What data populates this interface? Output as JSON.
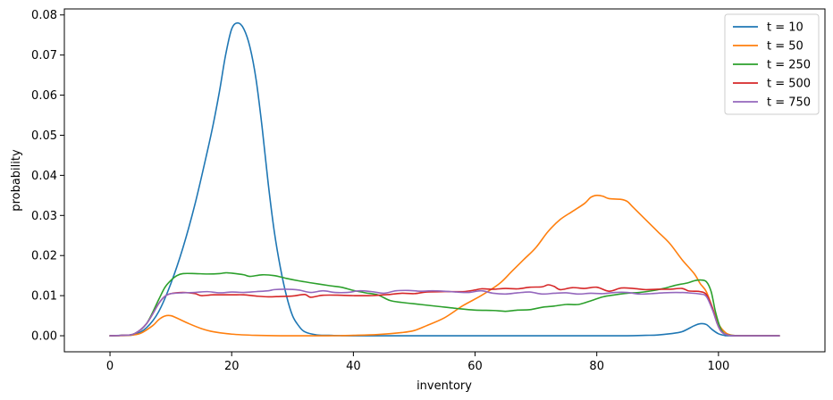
{
  "chart_data": {
    "type": "line",
    "xlabel": "inventory",
    "ylabel": "probability",
    "xlim": [
      -7.5,
      117.5
    ],
    "ylim": [
      -0.004,
      0.0815
    ],
    "xticks": [
      0,
      20,
      40,
      60,
      80,
      100
    ],
    "yticks": [
      0.0,
      0.01,
      0.02,
      0.03,
      0.04,
      0.05,
      0.06,
      0.07,
      0.08
    ],
    "ytick_labels": [
      "0.00",
      "0.01",
      "0.02",
      "0.03",
      "0.04",
      "0.05",
      "0.06",
      "0.07",
      "0.08"
    ],
    "grid": false,
    "legend_position": "top-right",
    "series": [
      {
        "name": "t = 10",
        "color": "#1f77b4",
        "points": [
          [
            0,
            0
          ],
          [
            2,
            0.0001
          ],
          [
            4,
            0.0003
          ],
          [
            6,
            0.002
          ],
          [
            8,
            0.006
          ],
          [
            10,
            0.013
          ],
          [
            12,
            0.022
          ],
          [
            14,
            0.033
          ],
          [
            16,
            0.046
          ],
          [
            17,
            0.053
          ],
          [
            18,
            0.061
          ],
          [
            19,
            0.07
          ],
          [
            20,
            0.0765
          ],
          [
            21,
            0.078
          ],
          [
            22,
            0.0765
          ],
          [
            23,
            0.072
          ],
          [
            24,
            0.064
          ],
          [
            25,
            0.052
          ],
          [
            26,
            0.038
          ],
          [
            27,
            0.026
          ],
          [
            28,
            0.017
          ],
          [
            29,
            0.01
          ],
          [
            30,
            0.005
          ],
          [
            31,
            0.0025
          ],
          [
            32,
            0.001
          ],
          [
            34,
            0.0002
          ],
          [
            36,
            0.0001
          ],
          [
            40,
            0
          ],
          [
            60,
            0
          ],
          [
            80,
            0
          ],
          [
            85,
            0
          ],
          [
            88,
            0.0001
          ],
          [
            90,
            0.0002
          ],
          [
            92,
            0.0005
          ],
          [
            94,
            0.001
          ],
          [
            96,
            0.0025
          ],
          [
            97,
            0.003
          ],
          [
            98,
            0.0028
          ],
          [
            99,
            0.0015
          ],
          [
            100,
            0.0005
          ],
          [
            101,
            0.0001
          ],
          [
            102,
            0
          ],
          [
            110,
            0
          ]
        ]
      },
      {
        "name": "t = 50",
        "color": "#ff7f0e",
        "points": [
          [
            0,
            0
          ],
          [
            3,
            0.0001
          ],
          [
            5,
            0.0006
          ],
          [
            7,
            0.0025
          ],
          [
            8,
            0.004
          ],
          [
            9,
            0.0049
          ],
          [
            10,
            0.005
          ],
          [
            11,
            0.0044
          ],
          [
            13,
            0.003
          ],
          [
            15,
            0.0018
          ],
          [
            17,
            0.001
          ],
          [
            20,
            0.0004
          ],
          [
            24,
            0.0001
          ],
          [
            28,
            0
          ],
          [
            36,
            0
          ],
          [
            40,
            0.0001
          ],
          [
            44,
            0.0003
          ],
          [
            48,
            0.0008
          ],
          [
            50,
            0.0013
          ],
          [
            52,
            0.0025
          ],
          [
            55,
            0.0045
          ],
          [
            58,
            0.0075
          ],
          [
            61,
            0.01
          ],
          [
            64,
            0.013
          ],
          [
            66,
            0.016
          ],
          [
            68,
            0.019
          ],
          [
            70,
            0.022
          ],
          [
            72,
            0.026
          ],
          [
            74,
            0.029
          ],
          [
            76,
            0.031
          ],
          [
            78,
            0.033
          ],
          [
            79,
            0.0345
          ],
          [
            80,
            0.035
          ],
          [
            81,
            0.0348
          ],
          [
            82,
            0.0342
          ],
          [
            84,
            0.034
          ],
          [
            85,
            0.0335
          ],
          [
            86,
            0.032
          ],
          [
            88,
            0.029
          ],
          [
            90,
            0.026
          ],
          [
            92,
            0.023
          ],
          [
            94,
            0.019
          ],
          [
            96,
            0.0155
          ],
          [
            97,
            0.013
          ],
          [
            98,
            0.011
          ],
          [
            99,
            0.007
          ],
          [
            100,
            0.003
          ],
          [
            101,
            0.001
          ],
          [
            102,
            0.0002
          ],
          [
            104,
            0
          ],
          [
            110,
            0
          ]
        ]
      },
      {
        "name": "t = 250",
        "color": "#2ca02c",
        "points": [
          [
            0,
            0
          ],
          [
            2,
            0.0001
          ],
          [
            4,
            0.0005
          ],
          [
            6,
            0.003
          ],
          [
            8,
            0.009
          ],
          [
            9,
            0.012
          ],
          [
            10,
            0.0138
          ],
          [
            11,
            0.015
          ],
          [
            12,
            0.0155
          ],
          [
            14,
            0.0155
          ],
          [
            16,
            0.0154
          ],
          [
            18,
            0.0155
          ],
          [
            19,
            0.0157
          ],
          [
            20,
            0.0156
          ],
          [
            22,
            0.0152
          ],
          [
            23,
            0.0148
          ],
          [
            25,
            0.0152
          ],
          [
            27,
            0.015
          ],
          [
            29,
            0.0143
          ],
          [
            31,
            0.0137
          ],
          [
            33,
            0.0132
          ],
          [
            36,
            0.0125
          ],
          [
            38,
            0.0121
          ],
          [
            40,
            0.0113
          ],
          [
            42,
            0.0107
          ],
          [
            44,
            0.0102
          ],
          [
            46,
            0.0088
          ],
          [
            48,
            0.0083
          ],
          [
            51,
            0.0078
          ],
          [
            54,
            0.0073
          ],
          [
            57,
            0.0068
          ],
          [
            60,
            0.0064
          ],
          [
            63,
            0.0063
          ],
          [
            65,
            0.0061
          ],
          [
            67,
            0.0064
          ],
          [
            69,
            0.0065
          ],
          [
            71,
            0.0071
          ],
          [
            73,
            0.0074
          ],
          [
            75,
            0.0078
          ],
          [
            77,
            0.0078
          ],
          [
            79,
            0.0087
          ],
          [
            81,
            0.0097
          ],
          [
            83,
            0.0102
          ],
          [
            85,
            0.0106
          ],
          [
            87,
            0.0108
          ],
          [
            89,
            0.0112
          ],
          [
            91,
            0.0118
          ],
          [
            93,
            0.0126
          ],
          [
            95,
            0.0132
          ],
          [
            96,
            0.0137
          ],
          [
            97,
            0.0139
          ],
          [
            98,
            0.0135
          ],
          [
            98.8,
            0.011
          ],
          [
            99.5,
            0.006
          ],
          [
            100.3,
            0.002
          ],
          [
            101,
            0.0005
          ],
          [
            102,
            0.0001
          ],
          [
            104,
            0
          ],
          [
            110,
            0
          ]
        ]
      },
      {
        "name": "t = 500",
        "color": "#d62728",
        "points": [
          [
            0,
            0
          ],
          [
            2,
            0.0001
          ],
          [
            4,
            0.0005
          ],
          [
            6,
            0.003
          ],
          [
            8,
            0.008
          ],
          [
            9,
            0.0098
          ],
          [
            10,
            0.0105
          ],
          [
            12,
            0.0108
          ],
          [
            14,
            0.0105
          ],
          [
            15,
            0.01
          ],
          [
            17,
            0.0102
          ],
          [
            20,
            0.0102
          ],
          [
            22,
            0.0102
          ],
          [
            24,
            0.0099
          ],
          [
            26,
            0.0097
          ],
          [
            28,
            0.0098
          ],
          [
            30,
            0.0099
          ],
          [
            32,
            0.0103
          ],
          [
            33,
            0.0096
          ],
          [
            35,
            0.0101
          ],
          [
            38,
            0.0101
          ],
          [
            40,
            0.01
          ],
          [
            43,
            0.01
          ],
          [
            46,
            0.0103
          ],
          [
            48,
            0.0106
          ],
          [
            50,
            0.0105
          ],
          [
            52,
            0.0109
          ],
          [
            55,
            0.011
          ],
          [
            58,
            0.011
          ],
          [
            60,
            0.0114
          ],
          [
            61,
            0.0117
          ],
          [
            63,
            0.0116
          ],
          [
            65,
            0.0118
          ],
          [
            67,
            0.0117
          ],
          [
            69,
            0.0121
          ],
          [
            71,
            0.0122
          ],
          [
            72,
            0.0127
          ],
          [
            73,
            0.0123
          ],
          [
            74,
            0.0115
          ],
          [
            76,
            0.012
          ],
          [
            78,
            0.0118
          ],
          [
            80,
            0.0121
          ],
          [
            82,
            0.0111
          ],
          [
            84,
            0.0119
          ],
          [
            86,
            0.0118
          ],
          [
            88,
            0.0115
          ],
          [
            90,
            0.0116
          ],
          [
            92,
            0.0116
          ],
          [
            94,
            0.0118
          ],
          [
            95,
            0.0112
          ],
          [
            96,
            0.0111
          ],
          [
            97,
            0.011
          ],
          [
            98,
            0.0103
          ],
          [
            99,
            0.007
          ],
          [
            99.8,
            0.003
          ],
          [
            100.5,
            0.001
          ],
          [
            101.5,
            0.0002
          ],
          [
            103,
            0
          ],
          [
            110,
            0
          ]
        ]
      },
      {
        "name": "t = 750",
        "color": "#9467bd",
        "points": [
          [
            0,
            0
          ],
          [
            2,
            0.0001
          ],
          [
            4,
            0.0005
          ],
          [
            6,
            0.003
          ],
          [
            8,
            0.008
          ],
          [
            9,
            0.0098
          ],
          [
            10,
            0.0105
          ],
          [
            12,
            0.0107
          ],
          [
            14,
            0.0108
          ],
          [
            16,
            0.011
          ],
          [
            18,
            0.0107
          ],
          [
            20,
            0.0109
          ],
          [
            22,
            0.0108
          ],
          [
            24,
            0.011
          ],
          [
            26,
            0.0112
          ],
          [
            27,
            0.0115
          ],
          [
            29,
            0.0116
          ],
          [
            31,
            0.0114
          ],
          [
            33,
            0.0108
          ],
          [
            35,
            0.0112
          ],
          [
            37,
            0.0108
          ],
          [
            39,
            0.0108
          ],
          [
            41,
            0.0112
          ],
          [
            43,
            0.011
          ],
          [
            45,
            0.0106
          ],
          [
            47,
            0.0112
          ],
          [
            49,
            0.0113
          ],
          [
            51,
            0.0111
          ],
          [
            53,
            0.0112
          ],
          [
            55,
            0.0111
          ],
          [
            57,
            0.0109
          ],
          [
            59,
            0.0108
          ],
          [
            61,
            0.0112
          ],
          [
            63,
            0.0106
          ],
          [
            65,
            0.0104
          ],
          [
            67,
            0.0107
          ],
          [
            69,
            0.0109
          ],
          [
            71,
            0.0104
          ],
          [
            73,
            0.0106
          ],
          [
            75,
            0.0107
          ],
          [
            77,
            0.0104
          ],
          [
            79,
            0.0106
          ],
          [
            81,
            0.0105
          ],
          [
            83,
            0.0108
          ],
          [
            85,
            0.0108
          ],
          [
            87,
            0.0104
          ],
          [
            89,
            0.0105
          ],
          [
            91,
            0.0107
          ],
          [
            93,
            0.0108
          ],
          [
            95,
            0.0107
          ],
          [
            97,
            0.0104
          ],
          [
            98,
            0.0098
          ],
          [
            99,
            0.0065
          ],
          [
            99.8,
            0.003
          ],
          [
            100.5,
            0.001
          ],
          [
            101.5,
            0.0002
          ],
          [
            103,
            0
          ],
          [
            110,
            0
          ]
        ]
      }
    ]
  }
}
